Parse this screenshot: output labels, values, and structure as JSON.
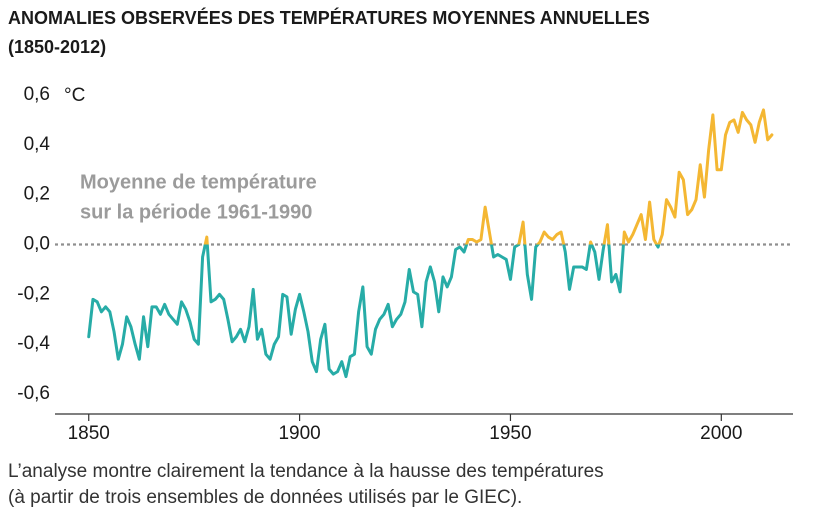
{
  "chart_data": {
    "type": "line",
    "title": [
      "ANOMALIES OBSERVÉES DES TEMPÉRATURES MOYENNES ANNUELLES",
      "(1850-2012)"
    ],
    "y_unit": "°C",
    "annotation": [
      "Moyenne de température",
      "sur la période 1961-1990"
    ],
    "caption": [
      "L’analyse montre clairement la tendance à la hausse des températures",
      "(à partir de trois ensembles de données utilisés par le GIEC)."
    ],
    "reference_line": 0,
    "color": "#27aca7",
    "above_color": "#f4b733",
    "reference_color": "#8f8f8f",
    "xlim": [
      1842,
      2017
    ],
    "xticks": [
      1850,
      1900,
      1950,
      2000
    ],
    "ylim": [
      -0.68,
      0.64
    ],
    "yticks": [
      {
        "value": 0.6,
        "label": "0,6"
      },
      {
        "value": 0.4,
        "label": "0,4"
      },
      {
        "value": 0.2,
        "label": "0,2"
      },
      {
        "value": 0,
        "label": "0,0"
      },
      {
        "value": -0.2,
        "label": "-0,2"
      },
      {
        "value": -0.4,
        "label": "-0,4"
      },
      {
        "value": -0.6,
        "label": "-0,6"
      }
    ],
    "x": [
      1850,
      1851,
      1852,
      1853,
      1854,
      1855,
      1856,
      1857,
      1858,
      1859,
      1860,
      1861,
      1862,
      1863,
      1864,
      1865,
      1866,
      1867,
      1868,
      1869,
      1870,
      1871,
      1872,
      1873,
      1874,
      1875,
      1876,
      1877,
      1878,
      1879,
      1880,
      1881,
      1882,
      1883,
      1884,
      1885,
      1886,
      1887,
      1888,
      1889,
      1890,
      1891,
      1892,
      1893,
      1894,
      1895,
      1896,
      1897,
      1898,
      1899,
      1900,
      1901,
      1902,
      1903,
      1904,
      1905,
      1906,
      1907,
      1908,
      1909,
      1910,
      1911,
      1912,
      1913,
      1914,
      1915,
      1916,
      1917,
      1918,
      1919,
      1920,
      1921,
      1922,
      1923,
      1924,
      1925,
      1926,
      1927,
      1928,
      1929,
      1930,
      1931,
      1932,
      1933,
      1934,
      1935,
      1936,
      1937,
      1938,
      1939,
      1940,
      1941,
      1942,
      1943,
      1944,
      1945,
      1946,
      1947,
      1948,
      1949,
      1950,
      1951,
      1952,
      1953,
      1954,
      1955,
      1956,
      1957,
      1958,
      1959,
      1960,
      1961,
      1962,
      1963,
      1964,
      1965,
      1966,
      1967,
      1968,
      1969,
      1970,
      1971,
      1972,
      1973,
      1974,
      1975,
      1976,
      1977,
      1978,
      1979,
      1980,
      1981,
      1982,
      1983,
      1984,
      1985,
      1986,
      1987,
      1988,
      1989,
      1990,
      1991,
      1992,
      1993,
      1994,
      1995,
      1996,
      1997,
      1998,
      1999,
      2000,
      2001,
      2002,
      2003,
      2004,
      2005,
      2006,
      2007,
      2008,
      2009,
      2010,
      2011,
      2012
    ],
    "values": [
      -0.37,
      -0.22,
      -0.23,
      -0.27,
      -0.25,
      -0.27,
      -0.35,
      -0.46,
      -0.4,
      -0.29,
      -0.33,
      -0.4,
      -0.46,
      -0.29,
      -0.41,
      -0.25,
      -0.25,
      -0.28,
      -0.24,
      -0.28,
      -0.3,
      -0.32,
      -0.23,
      -0.26,
      -0.31,
      -0.38,
      -0.4,
      -0.05,
      0.03,
      -0.23,
      -0.22,
      -0.2,
      -0.22,
      -0.3,
      -0.39,
      -0.37,
      -0.34,
      -0.39,
      -0.33,
      -0.18,
      -0.38,
      -0.34,
      -0.44,
      -0.46,
      -0.4,
      -0.37,
      -0.2,
      -0.21,
      -0.36,
      -0.26,
      -0.2,
      -0.27,
      -0.35,
      -0.47,
      -0.51,
      -0.38,
      -0.32,
      -0.5,
      -0.52,
      -0.51,
      -0.47,
      -0.53,
      -0.45,
      -0.44,
      -0.27,
      -0.17,
      -0.41,
      -0.44,
      -0.34,
      -0.3,
      -0.28,
      -0.24,
      -0.33,
      -0.3,
      -0.28,
      -0.23,
      -0.1,
      -0.19,
      -0.2,
      -0.33,
      -0.15,
      -0.09,
      -0.15,
      -0.27,
      -0.13,
      -0.17,
      -0.13,
      -0.02,
      -0.01,
      -0.03,
      0.02,
      0.02,
      0.01,
      0.02,
      0.15,
      0.05,
      -0.05,
      -0.04,
      -0.05,
      -0.06,
      -0.14,
      -0.01,
      0.0,
      0.09,
      -0.12,
      -0.22,
      -0.01,
      0.01,
      0.05,
      0.03,
      0.02,
      0.04,
      0.05,
      -0.03,
      -0.18,
      -0.09,
      -0.09,
      -0.09,
      -0.1,
      0.01,
      -0.03,
      -0.14,
      -0.02,
      0.08,
      -0.15,
      -0.12,
      -0.19,
      0.05,
      0.01,
      0.04,
      0.08,
      0.12,
      0.02,
      0.17,
      0.02,
      -0.01,
      0.04,
      0.18,
      0.15,
      0.11,
      0.29,
      0.26,
      0.12,
      0.14,
      0.18,
      0.32,
      0.19,
      0.38,
      0.52,
      0.3,
      0.3,
      0.44,
      0.49,
      0.5,
      0.45,
      0.53,
      0.5,
      0.48,
      0.41,
      0.49,
      0.54,
      0.42,
      0.44
    ]
  }
}
